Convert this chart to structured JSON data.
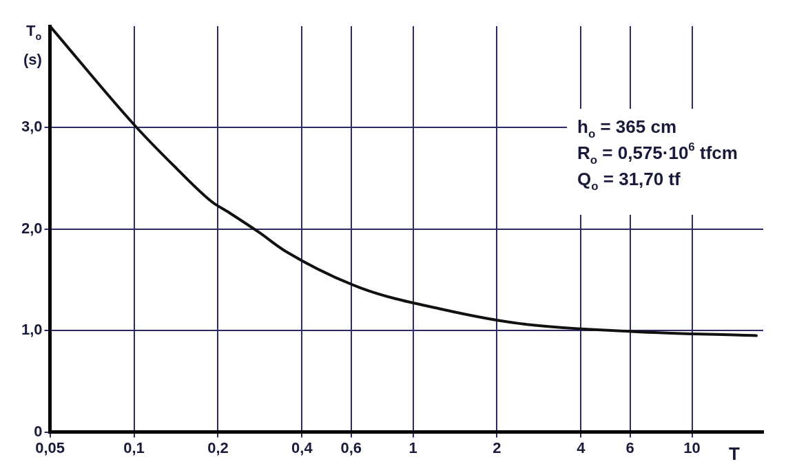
{
  "chart_data": {
    "type": "line",
    "xlabel": "T",
    "ylabel": "T$_{o}$ (s)",
    "x": [
      0.05,
      0.1,
      0.143,
      0.19,
      0.22,
      0.28,
      0.35,
      0.65,
      1.27,
      2.4,
      6.2,
      17
    ],
    "series": [
      {
        "color": "#111111",
        "values": [
          4.0,
          3.03,
          2.59,
          2.27,
          2.16,
          1.97,
          1.78,
          1.42,
          1.21,
          1.07,
          0.99,
          0.95
        ]
      }
    ],
    "log": "x",
    "xlim": [
      0.05,
      18
    ],
    "ylim": [
      0,
      4
    ],
    "xticks": [
      {
        "value": 0.05,
        "label": "0,05"
      },
      {
        "value": 0.1,
        "label": "0,1"
      },
      {
        "value": 0.2,
        "label": "0,2"
      },
      {
        "value": 0.4,
        "label": "0,4"
      },
      {
        "value": 0.6,
        "label": "0,6"
      },
      1,
      2,
      4,
      6,
      10
    ],
    "yticks": [
      0,
      {
        "value": 1,
        "label": "1,0"
      },
      {
        "value": 2,
        "label": "2,0"
      },
      {
        "value": 3,
        "label": "3,0"
      }
    ],
    "grid": true,
    "legend": false,
    "marker": "none",
    "line_style": "solid",
    "annotations": [
      "h$_{o}$ = 365 cm",
      "R$_{o}$ = 0,575·10$^{6}$ tfcm",
      "Q$_{o}$ = 31,70 tf"
    ]
  }
}
